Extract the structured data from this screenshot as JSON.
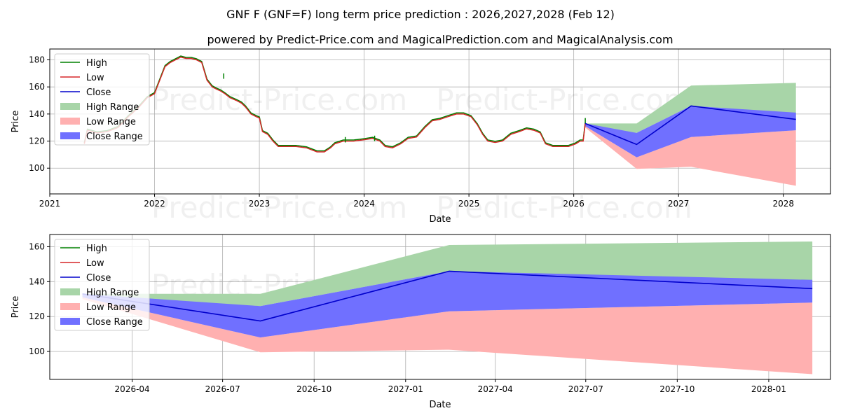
{
  "title": "GNF F (GNF=F) long term price prediction : 2026,2027,2028 (Feb 12)",
  "subtitle": "powered by Predict-Price.com and MagicalPrediction.com and MagicalAnalysis.com",
  "watermark": "Predict-Price.com",
  "colors": {
    "high": "#008000",
    "low": "#d62728",
    "close": "#0000cc",
    "high_range": "#a8d5a8",
    "low_range": "#ffb0b0",
    "close_range": "#7070ff"
  },
  "legend": [
    "High",
    "Low",
    "Close",
    "High Range",
    "Low Range",
    "Close Range"
  ],
  "chart_data": [
    {
      "type": "line",
      "name": "full history and prediction",
      "xlabel": "Date",
      "ylabel": "Price",
      "xlim": [
        2021.0,
        2028.45
      ],
      "ylim": [
        81,
        188
      ],
      "xticks": [
        2021,
        2022,
        2023,
        2024,
        2025,
        2026,
        2027,
        2028
      ],
      "xtick_labels": [
        "2021",
        "2022",
        "2023",
        "2024",
        "2025",
        "2026",
        "2027",
        "2028"
      ],
      "yticks": [
        100,
        120,
        140,
        160,
        180
      ],
      "grid": true,
      "legend_position": "upper-left",
      "history": {
        "x": [
          2021.33,
          2021.36,
          2021.45,
          2021.55,
          2021.65,
          2021.75,
          2021.85,
          2021.93,
          2022.0,
          2022.05,
          2022.1,
          2022.15,
          2022.2,
          2022.25,
          2022.3,
          2022.35,
          2022.4,
          2022.45,
          2022.5,
          2022.55,
          2022.6,
          2022.63,
          2022.67,
          2022.72,
          2022.78,
          2022.83,
          2022.87,
          2022.92,
          2022.97,
          2023.0,
          2023.03,
          2023.08,
          2023.13,
          2023.18,
          2023.25,
          2023.35,
          2023.45,
          2023.55,
          2023.62,
          2023.68,
          2023.72,
          2023.8,
          2023.9,
          2024.0,
          2024.08,
          2024.15,
          2024.2,
          2024.27,
          2024.35,
          2024.42,
          2024.5,
          2024.58,
          2024.65,
          2024.72,
          2024.8,
          2024.88,
          2024.95,
          2025.02,
          2025.08,
          2025.13,
          2025.18,
          2025.25,
          2025.32,
          2025.4,
          2025.48,
          2025.55,
          2025.62,
          2025.68,
          2025.73,
          2025.8,
          2025.88,
          2025.95,
          2026.02,
          2026.06,
          2026.09,
          2026.11
        ],
        "close": [
          118,
          128,
          126,
          127,
          130,
          138,
          145,
          152,
          155,
          165,
          175,
          178,
          180,
          182,
          181,
          181,
          180,
          178,
          165,
          160,
          158,
          157,
          155,
          152,
          150,
          148,
          145,
          140,
          138,
          137,
          127,
          125,
          120,
          116,
          116,
          116,
          115,
          112,
          112,
          115,
          118,
          120,
          120,
          121,
          122,
          120,
          116,
          115,
          118,
          122,
          123,
          130,
          135,
          136,
          138,
          140,
          140,
          138,
          132,
          125,
          120,
          119,
          120,
          125,
          127,
          129,
          128,
          126,
          118,
          116,
          116,
          116,
          118,
          120,
          120,
          133
        ],
        "high_spikes": [
          {
            "x": 2022.66,
            "y": 170
          },
          {
            "x": 2023.82,
            "y": 123
          },
          {
            "x": 2024.1,
            "y": 124
          },
          {
            "x": 2026.11,
            "y": 137
          }
        ]
      },
      "prediction": {
        "x": [
          2026.11,
          2026.6,
          2027.12,
          2028.12
        ],
        "close": [
          133,
          117.5,
          146,
          136
        ],
        "close_upper": [
          133,
          126,
          146,
          141
        ],
        "close_lower": [
          131,
          108,
          123,
          128
        ],
        "high_upper": [
          133,
          133,
          161,
          163
        ],
        "high_lower": [
          131,
          126,
          146,
          136
        ],
        "low_upper": [
          131,
          108,
          123,
          128
        ],
        "low_lower": [
          130,
          99.5,
          101,
          87
        ]
      }
    },
    {
      "type": "line",
      "name": "prediction zoom",
      "xlabel": "Date",
      "ylabel": "Price",
      "xlim": [
        2026.02,
        2028.17
      ],
      "ylim": [
        84,
        167
      ],
      "xticks": [
        2026.247,
        2026.496,
        2026.748,
        2027.0,
        2027.247,
        2027.496,
        2027.748,
        2028.0
      ],
      "xtick_labels": [
        "2026-04",
        "2026-07",
        "2026-10",
        "2027-01",
        "2027-04",
        "2027-07",
        "2027-10",
        "2028-01"
      ],
      "yticks": [
        100,
        120,
        140,
        160
      ],
      "grid": true,
      "legend_position": "upper-left",
      "prediction": {
        "x": [
          2026.11,
          2026.6,
          2027.12,
          2028.12
        ],
        "close": [
          133,
          117.5,
          146,
          136
        ],
        "close_upper": [
          133,
          126,
          146,
          141
        ],
        "close_lower": [
          131,
          108,
          123,
          128
        ],
        "high_upper": [
          133,
          133,
          161,
          163
        ],
        "high_lower": [
          131,
          126,
          146,
          136
        ],
        "low_upper": [
          131,
          108,
          123,
          128
        ],
        "low_lower": [
          130,
          99.5,
          101,
          87
        ]
      }
    }
  ]
}
